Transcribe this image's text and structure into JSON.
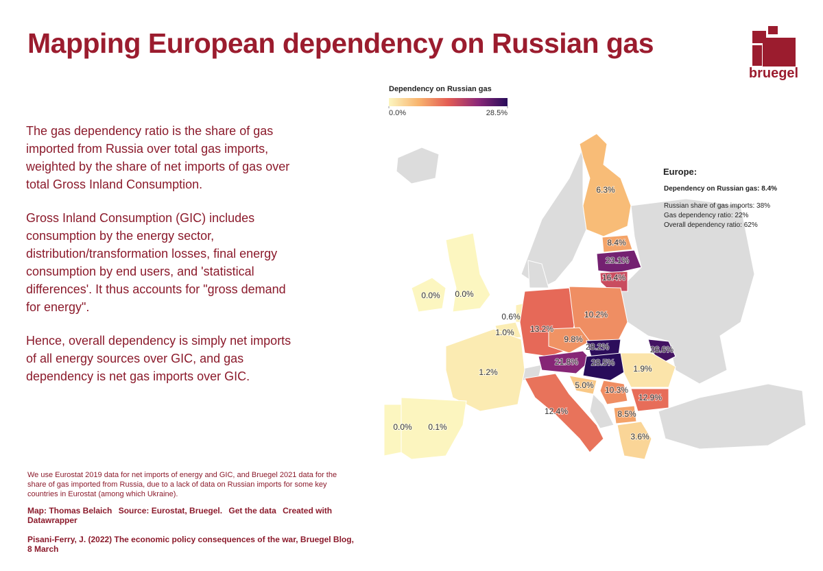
{
  "header": {
    "title": "Mapping European dependency on Russian gas",
    "logo": "bruegel"
  },
  "description": [
    "The gas dependency ratio is the share of gas imported from Russia over total gas imports, weighted by the share of net imports of gas over total Gross Inland Consumption.",
    "Gross Inland Consumption (GIC) includes consumption by the energy sector, distribution/transformation losses, final energy consumption by end users, and 'statistical differences'. It thus accounts for \"gross demand for energy\".",
    "Hence, overall dependency is simply net imports of all energy sources over GIC, and gas dependency is net gas imports over GIC."
  ],
  "legend": {
    "title": "Dependency on Russian gas",
    "ticks": [
      {
        "value": 0.0,
        "label": "0.0%"
      },
      {
        "value": 28.5,
        "label": "28.5%"
      }
    ]
  },
  "summary": {
    "title": "Europe:",
    "headline": "Dependency on Russian gas: 8.4%",
    "lines": [
      "Russian share of gas imports: 38%",
      "Gas dependency ratio: 22%",
      "Overall dependency ratio: 62%"
    ]
  },
  "regions": [
    {
      "value": 6.3,
      "label": "6.3%"
    },
    {
      "value": 8.4,
      "label": "8.4%"
    },
    {
      "value": 23.1,
      "label": "23.1%"
    },
    {
      "value": 16.4,
      "label": "16.4%"
    },
    {
      "value": 0.0,
      "label": "0.0%"
    },
    {
      "value": 0.0,
      "label": "0.0%"
    },
    {
      "value": 0.6,
      "label": "0.6%"
    },
    {
      "value": 1.0,
      "label": "1.0%"
    },
    {
      "value": 13.2,
      "label": "13.2%"
    },
    {
      "value": 10.2,
      "label": "10.2%"
    },
    {
      "value": 9.8,
      "label": "9.8%"
    },
    {
      "value": 28.2,
      "label": "28.2%"
    },
    {
      "value": 21.8,
      "label": "21.8%"
    },
    {
      "value": 28.5,
      "label": "28.5%"
    },
    {
      "value": 26.6,
      "label": "26.6%"
    },
    {
      "value": 1.9,
      "label": "1.9%"
    },
    {
      "value": 1.2,
      "label": "1.2%"
    },
    {
      "value": 5.0,
      "label": "5.0%"
    },
    {
      "value": 10.3,
      "label": "10.3%"
    },
    {
      "value": 12.9,
      "label": "12.9%"
    },
    {
      "value": 12.4,
      "label": "12.4%"
    },
    {
      "value": 8.5,
      "label": "8.5%"
    },
    {
      "value": 3.6,
      "label": "3.6%"
    },
    {
      "value": 0.0,
      "label": "0.0%"
    },
    {
      "value": 0.1,
      "label": "0.1%"
    }
  ],
  "footer": {
    "note": "We use Eurostat 2019 data for net imports of energy and GIC, and Bruegel 2021 data for the share of gas imported from Russia, due to a lack of data on Russian imports for some key countries in Eurostat (among which Ukraine).",
    "credits": [
      "Map: Thomas Belaich",
      "Source: Eurostat, Bruegel.",
      "Get the data",
      "Created with Datawrapper"
    ],
    "citation": "Pisani-Ferry, J. (2022) The economic policy consequences of the war, Bruegel Blog, 8 March"
  }
}
